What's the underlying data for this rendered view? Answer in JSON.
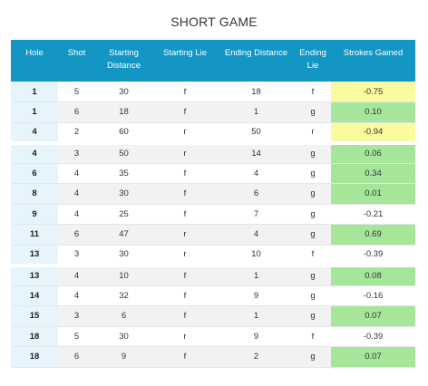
{
  "title": "SHORT GAME",
  "headers": {
    "hole": "Hole",
    "shot": "Shot",
    "starting_distance": "Starting Distance",
    "starting_lie": "Starting Lie",
    "ending_distance": "Ending Distance",
    "ending_lie": "Ending Lie",
    "strokes_gained": "Strokes Gained"
  },
  "colors": {
    "header_bg": "#1396c4",
    "hole_col_bg": "#e6f4fb",
    "positive_highlight": "#a6e69b",
    "negative_highlight": "#fafa9e"
  },
  "rows": [
    {
      "hole": "1",
      "shot": "5",
      "start_dist": "30",
      "start_lie": "f",
      "end_dist": "18",
      "end_lie": "f",
      "sg": "-0.75",
      "highlight": "yellow"
    },
    {
      "hole": "1",
      "shot": "6",
      "start_dist": "18",
      "start_lie": "f",
      "end_dist": "1",
      "end_lie": "g",
      "sg": "0.10",
      "highlight": "green"
    },
    {
      "hole": "4",
      "shot": "2",
      "start_dist": "60",
      "start_lie": "r",
      "end_dist": "50",
      "end_lie": "r",
      "sg": "-0.94",
      "highlight": "yellow"
    },
    {
      "hole": "4",
      "shot": "3",
      "start_dist": "50",
      "start_lie": "r",
      "end_dist": "14",
      "end_lie": "g",
      "sg": "0.06",
      "highlight": "green"
    },
    {
      "hole": "6",
      "shot": "4",
      "start_dist": "35",
      "start_lie": "f",
      "end_dist": "4",
      "end_lie": "g",
      "sg": "0.34",
      "highlight": "green"
    },
    {
      "hole": "8",
      "shot": "4",
      "start_dist": "30",
      "start_lie": "f",
      "end_dist": "6",
      "end_lie": "g",
      "sg": "0.01",
      "highlight": "green"
    },
    {
      "hole": "9",
      "shot": "4",
      "start_dist": "25",
      "start_lie": "f",
      "end_dist": "7",
      "end_lie": "g",
      "sg": "-0.21",
      "highlight": "none"
    },
    {
      "hole": "11",
      "shot": "6",
      "start_dist": "47",
      "start_lie": "r",
      "end_dist": "4",
      "end_lie": "g",
      "sg": "0.69",
      "highlight": "green"
    },
    {
      "hole": "13",
      "shot": "3",
      "start_dist": "30",
      "start_lie": "r",
      "end_dist": "10",
      "end_lie": "f",
      "sg": "-0.39",
      "highlight": "none"
    },
    {
      "hole": "13",
      "shot": "4",
      "start_dist": "10",
      "start_lie": "f",
      "end_dist": "1",
      "end_lie": "g",
      "sg": "0.08",
      "highlight": "green"
    },
    {
      "hole": "14",
      "shot": "4",
      "start_dist": "32",
      "start_lie": "f",
      "end_dist": "9",
      "end_lie": "g",
      "sg": "-0.16",
      "highlight": "none"
    },
    {
      "hole": "15",
      "shot": "3",
      "start_dist": "6",
      "start_lie": "f",
      "end_dist": "1",
      "end_lie": "g",
      "sg": "0.07",
      "highlight": "green"
    },
    {
      "hole": "18",
      "shot": "5",
      "start_dist": "30",
      "start_lie": "r",
      "end_dist": "9",
      "end_lie": "f",
      "sg": "-0.39",
      "highlight": "none"
    },
    {
      "hole": "18",
      "shot": "6",
      "start_dist": "9",
      "start_lie": "f",
      "end_dist": "2",
      "end_lie": "g",
      "sg": "0.07",
      "highlight": "green"
    }
  ]
}
